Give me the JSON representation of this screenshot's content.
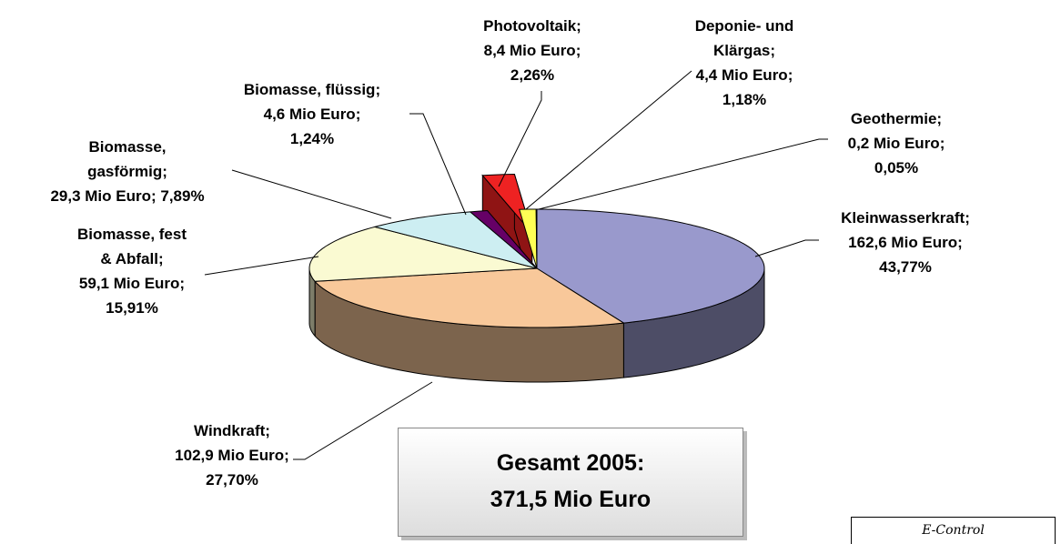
{
  "chart_data": {
    "type": "pie",
    "categories": [
      "Kleinwasserkraft;",
      "Windkraft;",
      "Biomasse, fest & Abfall;",
      "Biomasse, gasförmig;",
      "Biomasse, flüssig;",
      "Photovoltaik;",
      "Deponie- und Klärgas;",
      "Geothermie;"
    ],
    "values": [
      43.77,
      27.7,
      15.91,
      7.89,
      1.24,
      2.26,
      1.18,
      0.05
    ],
    "value_labels": [
      "43,77%",
      "27,70%",
      "15,91%",
      "7,89%",
      "1,24%",
      "2,26%",
      "1,18%",
      "0,05%"
    ],
    "amounts": [
      162.6,
      102.9,
      59.1,
      29.3,
      4.6,
      8.4,
      4.4,
      0.2
    ],
    "amount_labels": [
      "162,6 Mio Euro;",
      "102,9 Mio Euro;",
      "59,1 Mio Euro;",
      "29,3 Mio Euro;",
      "4,6 Mio Euro;",
      "8,4 Mio Euro;",
      "4,4 Mio Euro;",
      "0,2 Mio Euro;"
    ],
    "colors": [
      "#9999cc",
      "#f8c89a",
      "#fafad2",
      "#cdeef2",
      "#660066",
      "#ee2222",
      "#ffff55",
      "#c8c870"
    ],
    "exploded": [
      false,
      false,
      false,
      false,
      false,
      true,
      false,
      false
    ],
    "annotation": "Gesamt 2005:",
    "total_label": "371,5 Mio Euro",
    "source": "E-Control"
  }
}
